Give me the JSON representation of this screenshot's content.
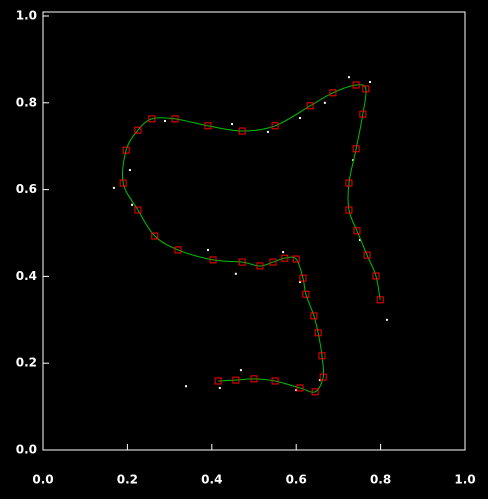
{
  "chart_data": {
    "type": "scatter",
    "xlim": [
      0,
      1
    ],
    "ylim": [
      0,
      1
    ],
    "xticks": [
      {
        "value": 0,
        "label": "0.0"
      },
      {
        "value": 0.2,
        "label": "0.2"
      },
      {
        "value": 0.4,
        "label": "0.4"
      },
      {
        "value": 0.6,
        "label": "0.6"
      },
      {
        "value": 0.8,
        "label": "0.8"
      },
      {
        "value": 1,
        "label": "1.0"
      }
    ],
    "yticks": [
      {
        "value": 0,
        "label": "0.0"
      },
      {
        "value": 0.2,
        "label": "0.2"
      },
      {
        "value": 0.4,
        "label": "0.4"
      },
      {
        "value": 0.6,
        "label": "0.6"
      },
      {
        "value": 0.8,
        "label": "0.8"
      },
      {
        "value": 1,
        "label": "1.0"
      }
    ],
    "series": [
      {
        "color": "#ffffff",
        "x": [
          0.339,
          0.168,
          0.725,
          0.815,
          0.457,
          0.391,
          0.211,
          0.569,
          0.656,
          0.6,
          0.469,
          0.289,
          0.448,
          0.609,
          0.775,
          0.735,
          0.751,
          0.668,
          0.206,
          0.533,
          0.609,
          0.419
        ],
        "values": [
          0.147,
          0.604,
          0.859,
          0.3,
          0.406,
          0.461,
          0.565,
          0.456,
          0.161,
          0.138,
          0.184,
          0.758,
          0.751,
          0.765,
          0.848,
          0.668,
          0.484,
          0.8,
          0.645,
          0.733,
          0.387,
          0.143
        ]
      },
      {
        "color": "#ff0000",
        "line_color": "#00c000",
        "x": [
          0.415,
          0.457,
          0.5,
          0.55,
          0.609,
          0.645,
          0.664,
          0.661,
          0.652,
          0.642,
          0.623,
          0.616,
          0.6,
          0.573,
          0.545,
          0.514,
          0.472,
          0.403,
          0.32,
          0.265,
          0.225,
          0.19,
          0.197,
          0.225,
          0.258,
          0.313,
          0.391,
          0.472,
          0.55,
          0.633,
          0.687,
          0.742,
          0.765,
          0.758,
          0.742,
          0.725,
          0.725,
          0.744,
          0.768,
          0.789,
          0.799
        ],
        "values": [
          0.159,
          0.161,
          0.164,
          0.159,
          0.143,
          0.134,
          0.168,
          0.217,
          0.27,
          0.309,
          0.359,
          0.396,
          0.44,
          0.442,
          0.433,
          0.424,
          0.433,
          0.438,
          0.461,
          0.493,
          0.553,
          0.615,
          0.691,
          0.737,
          0.763,
          0.763,
          0.747,
          0.735,
          0.747,
          0.793,
          0.823,
          0.841,
          0.832,
          0.774,
          0.694,
          0.615,
          0.553,
          0.505,
          0.449,
          0.401,
          0.346
        ]
      }
    ]
  }
}
